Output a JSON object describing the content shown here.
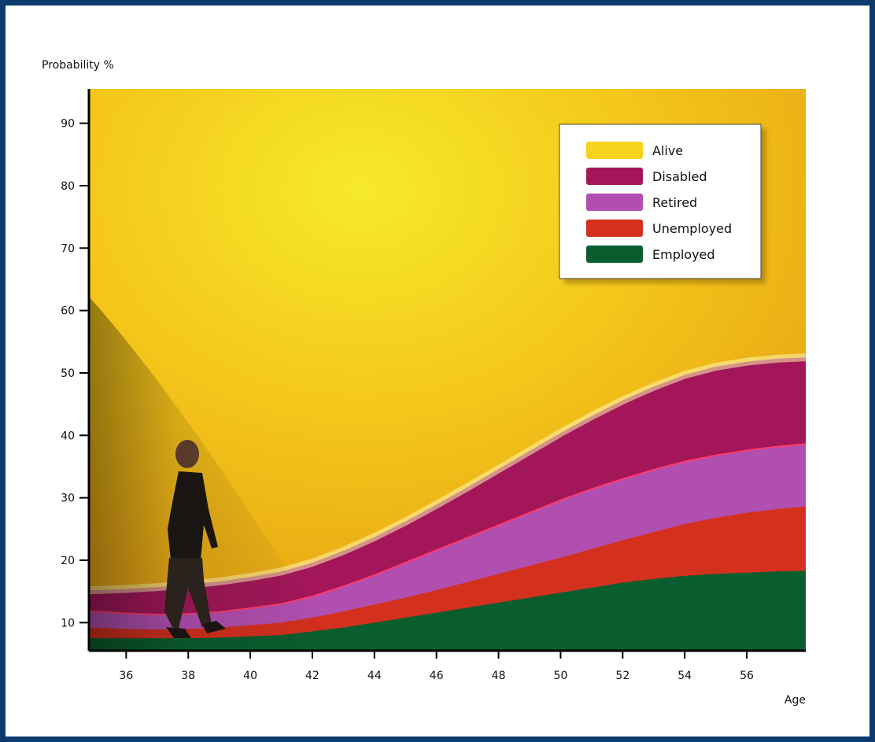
{
  "chart_data": {
    "type": "area",
    "ylabel": "Probability %",
    "xlabel": "Age",
    "xlim": [
      34.8,
      57.9
    ],
    "ylim": [
      5.5,
      95.5
    ],
    "x_ticks": [
      36,
      38,
      40,
      42,
      44,
      46,
      48,
      50,
      52,
      54,
      56
    ],
    "y_ticks": [
      10,
      20,
      30,
      40,
      50,
      60,
      70,
      80,
      90
    ],
    "grid": false,
    "legend_position": "top-right",
    "x": [
      35,
      36,
      37,
      38,
      39,
      40,
      41,
      42,
      43,
      44,
      45,
      46,
      47,
      48,
      49,
      50,
      51,
      52,
      53,
      54,
      55,
      56,
      57,
      57.9
    ],
    "series": [
      {
        "name": "Employed",
        "color": "#0a5e2e",
        "values": [
          7.5,
          7.5,
          7.5,
          7.5,
          7.6,
          7.8,
          8.0,
          8.6,
          9.2,
          10.0,
          10.8,
          11.6,
          12.4,
          13.2,
          14.0,
          14.8,
          15.6,
          16.4,
          17.0,
          17.5,
          17.8,
          18.0,
          18.2,
          18.3
        ]
      },
      {
        "name": "Unemployed",
        "color": "#d4301e",
        "values": [
          9.2,
          9.0,
          8.9,
          9.0,
          9.2,
          9.6,
          10.0,
          10.8,
          11.8,
          12.9,
          14.0,
          15.2,
          16.5,
          17.8,
          19.1,
          20.4,
          21.8,
          23.2,
          24.5,
          25.8,
          26.8,
          27.6,
          28.2,
          28.6
        ]
      },
      {
        "name": "Retired",
        "color": "#b14fb0",
        "values": [
          11.8,
          11.5,
          11.3,
          11.4,
          11.7,
          12.3,
          13.0,
          14.2,
          15.8,
          17.6,
          19.6,
          21.6,
          23.6,
          25.6,
          27.6,
          29.6,
          31.4,
          33.0,
          34.5,
          35.8,
          36.8,
          37.6,
          38.2,
          38.6
        ]
      },
      {
        "name": "Disabled",
        "color": "#a3175a",
        "values": [
          15.2,
          15.4,
          15.7,
          16.1,
          16.6,
          17.3,
          18.2,
          19.6,
          21.5,
          23.7,
          26.2,
          28.9,
          31.7,
          34.6,
          37.5,
          40.4,
          43.1,
          45.6,
          47.8,
          49.7,
          51.0,
          51.8,
          52.3,
          52.5
        ]
      },
      {
        "name": "Alive",
        "color": "#f3c51a",
        "values": [
          95.5,
          95.5,
          95.5,
          95.5,
          95.5,
          95.5,
          95.5,
          95.5,
          95.5,
          95.5,
          95.5,
          95.5,
          95.5,
          95.5,
          95.5,
          95.5,
          95.5,
          95.5,
          95.5,
          95.5,
          95.5,
          95.5,
          95.5,
          95.5
        ]
      }
    ],
    "legend_order": [
      "Alive",
      "Disabled",
      "Retired",
      "Unemployed",
      "Employed"
    ]
  }
}
